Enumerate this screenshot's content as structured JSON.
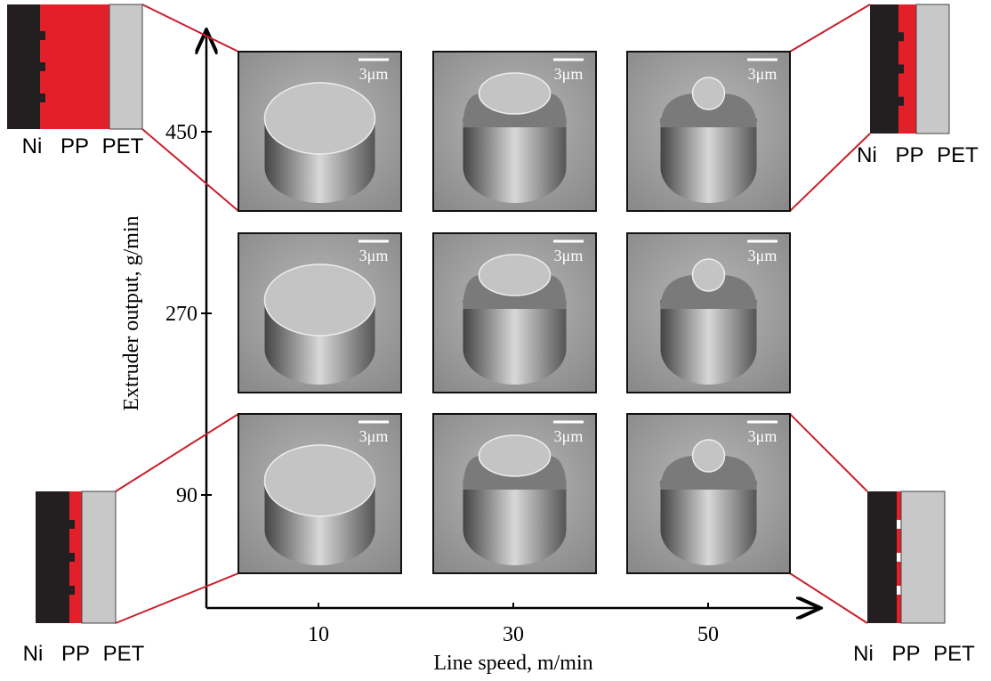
{
  "x_axis": {
    "label": "Line speed, m/min",
    "ticks": [
      10,
      30,
      50
    ]
  },
  "y_axis": {
    "label": "Extruder output, g/min",
    "ticks": [
      450,
      270,
      90
    ]
  },
  "panels": [
    {
      "scale": "3μm"
    },
    {
      "scale": "3μm"
    },
    {
      "scale": "3μm"
    },
    {
      "scale": "3μm"
    },
    {
      "scale": "3μm"
    },
    {
      "scale": "3μm"
    },
    {
      "scale": "3μm"
    },
    {
      "scale": "3μm"
    },
    {
      "scale": "3μm"
    }
  ],
  "insets": [
    {
      "labels": [
        "Ni",
        "PP",
        "PET"
      ]
    },
    {
      "labels": [
        "Ni",
        "PP",
        "PET"
      ]
    },
    {
      "labels": [
        "Ni",
        "PP",
        "PET"
      ]
    },
    {
      "labels": [
        "Ni",
        "PP",
        "PET"
      ]
    }
  ]
}
